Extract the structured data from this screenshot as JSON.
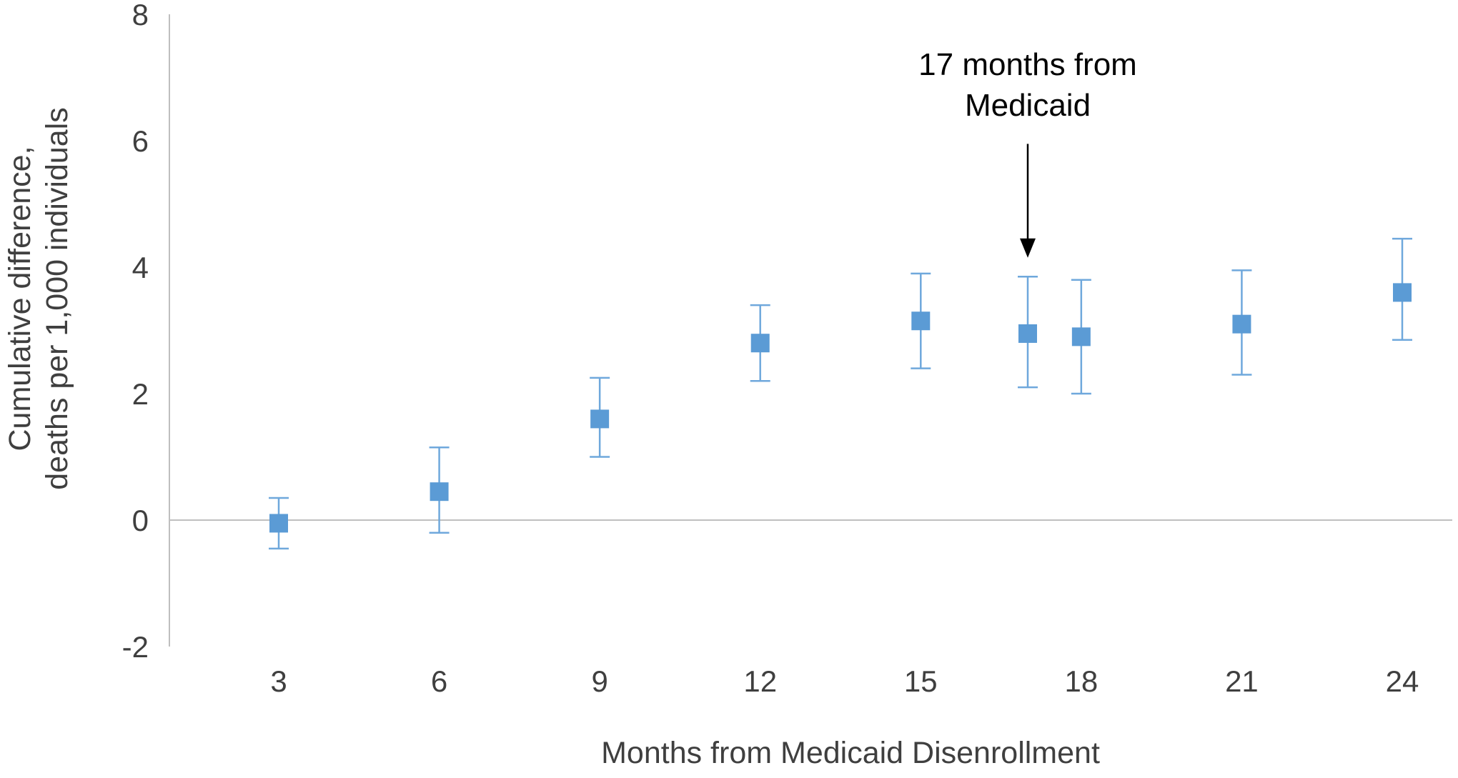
{
  "figure": {
    "background": "#ffffff"
  },
  "chart_data": {
    "type": "scatter",
    "title": "",
    "xlabel": "Months from Medicaid Disenrollment",
    "ylabel": "Cumulative difference, deaths per 1,000 individuals",
    "ylabel_lines": [
      "Cumulative difference,",
      "deaths per 1,000 individuals"
    ],
    "xlim": [
      1,
      25
    ],
    "ylim": [
      -2,
      8
    ],
    "xticks": [
      3,
      6,
      9,
      12,
      15,
      18,
      21,
      24
    ],
    "yticks": [
      8,
      6,
      4,
      2,
      0,
      -2
    ],
    "grid": "zero-line-only",
    "legend": "none",
    "marker": "square",
    "marker_color": "#5b9bd5",
    "errorbar_color": "#6fa8dc",
    "axis_color": "#bfbfbf",
    "text_color": "#3f3f3f",
    "x": [
      3,
      6,
      9,
      12,
      15,
      17,
      18,
      21,
      24
    ],
    "y": [
      -0.05,
      0.45,
      1.6,
      2.8,
      3.15,
      2.95,
      2.9,
      3.1,
      3.6
    ],
    "ci_low": [
      -0.45,
      -0.2,
      1.0,
      2.2,
      2.4,
      2.1,
      2.0,
      2.3,
      2.85
    ],
    "ci_high": [
      0.35,
      1.15,
      2.25,
      3.4,
      3.9,
      3.85,
      3.8,
      3.95,
      4.45
    ],
    "annotation": {
      "lines": [
        "17 months from",
        "Medicaid"
      ],
      "x": 17,
      "arrow_from_y": 5.95,
      "arrow_to_y": 4.15
    }
  }
}
